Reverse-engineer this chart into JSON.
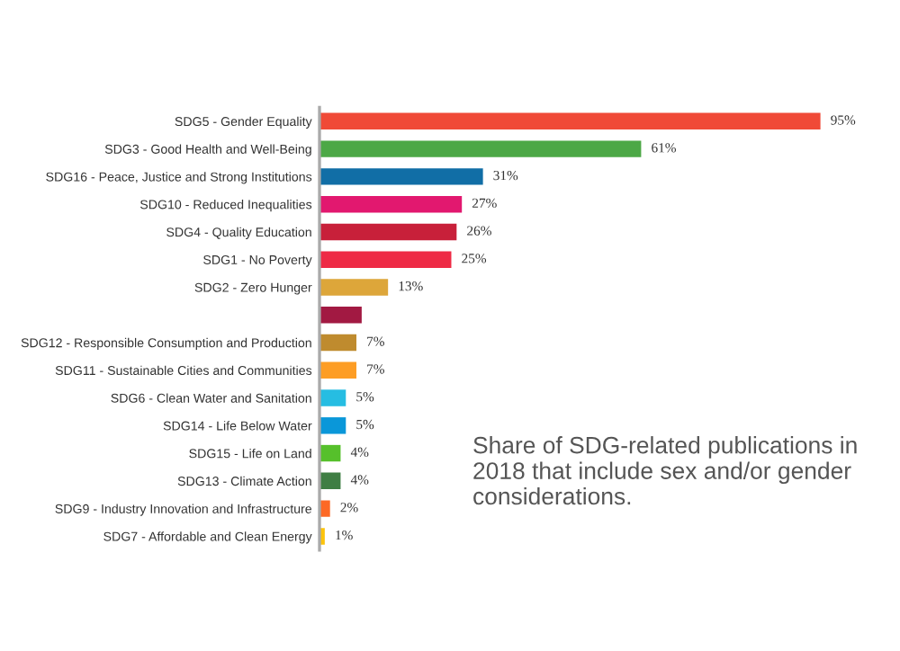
{
  "chart_data": {
    "type": "bar",
    "orientation": "horizontal",
    "categories": [
      "SDG5 - Gender Equality",
      "SDG3 - Good Health and Well-Being",
      "SDG16 - Peace, Justice and Strong Institutions",
      "SDG10 - Reduced Inequalities",
      "SDG4 - Quality Education",
      "SDG1 - No Poverty",
      "SDG2 - Zero Hunger",
      null,
      "SDG12 - Responsible Consumption and Production",
      "SDG11 - Sustainable Cities and Communities",
      "SDG6 - Clean Water and Sanitation",
      "SDG14 - Life Below Water",
      "SDG15 - Life on Land",
      "SDG13 - Climate Action",
      "SDG9 - Industry Innovation and Infrastructure",
      "SDG7 - Affordable and Clean Energy"
    ],
    "values": [
      95,
      61,
      31,
      27,
      26,
      25,
      13,
      8,
      7,
      7,
      5,
      5,
      4,
      4,
      2,
      1
    ],
    "value_labels": [
      "95%",
      "61%",
      "31%",
      "27%",
      "26%",
      "25%",
      "13%",
      null,
      "7%",
      "7%",
      "5%",
      "5%",
      "4%",
      "4%",
      "2%",
      "1%"
    ],
    "colors": [
      "#f04a37",
      "#4ca846",
      "#116ea6",
      "#e2186f",
      "#c8203a",
      "#ee2a45",
      "#dda63a",
      "#a21942",
      "#bf8b2e",
      "#fd9d24",
      "#26bde2",
      "#0a97d9",
      "#56c02b",
      "#3f7e44",
      "#fd6925",
      "#fcc30b"
    ],
    "annotations": [
      "Share of SDG-related publications in 2018 that include sex and/or gender considerations."
    ],
    "grid": false,
    "legend": false
  }
}
